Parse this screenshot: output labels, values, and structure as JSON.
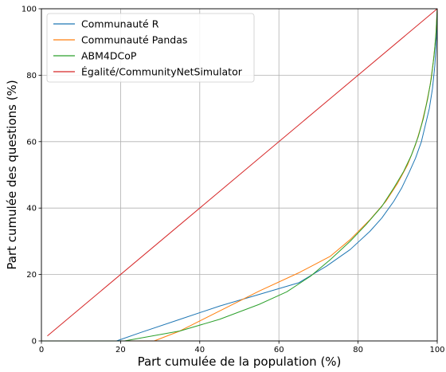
{
  "chart_data": {
    "type": "line",
    "xlabel": "Part cumulée de la population (%)",
    "ylabel": "Part cumulée des questions (%)",
    "xlim": [
      0,
      100
    ],
    "ylim": [
      0,
      100
    ],
    "xticks": [
      0,
      20,
      40,
      60,
      80,
      100
    ],
    "yticks": [
      0,
      20,
      40,
      60,
      80,
      100
    ],
    "grid": true,
    "legend_position": "top-left",
    "series": [
      {
        "name": "Communauté R",
        "color": "#1f77b4",
        "x": [
          0,
          10,
          19,
          25,
          35,
          45,
          55,
          65,
          72,
          78,
          83,
          86,
          89,
          91,
          93,
          94.5,
          96,
          97,
          98,
          98.8,
          99.4,
          99.8,
          100
        ],
        "y": [
          0,
          0,
          0,
          2.5,
          6.5,
          10.5,
          14,
          17.5,
          22.5,
          27.5,
          33,
          37,
          42,
          46,
          51,
          55,
          60,
          65,
          70,
          76,
          83,
          91,
          100
        ]
      },
      {
        "name": "Communauté Pandas",
        "color": "#ff7f0e",
        "x": [
          0,
          20,
          28.5,
          35,
          45,
          55,
          65,
          73,
          78,
          83,
          87,
          90,
          92.5,
          94.5,
          96,
          97.2,
          98.2,
          99,
          99.6,
          100
        ],
        "y": [
          0,
          0,
          0,
          3,
          9,
          15,
          20.5,
          25.5,
          30.5,
          36.5,
          42,
          47.5,
          53,
          59,
          65,
          71,
          77,
          84,
          91,
          100
        ]
      },
      {
        "name": "ABM4DCoP",
        "color": "#2ca02c",
        "x": [
          0,
          15,
          21,
          28,
          35,
          45,
          55,
          62,
          68,
          73,
          78,
          82,
          86,
          89,
          91.5,
          93.5,
          95.2,
          96.5,
          97.6,
          98.5,
          99.2,
          99.7,
          100
        ],
        "y": [
          0,
          0,
          0,
          1.5,
          3,
          6.5,
          11,
          14.8,
          19.5,
          24.5,
          30,
          35,
          40.5,
          46,
          51,
          56,
          61.5,
          67,
          73,
          79,
          86,
          93,
          100
        ]
      },
      {
        "name": "Égalité/CommunityNetSimulator",
        "color": "#d62728",
        "x": [
          1.5,
          100
        ],
        "y": [
          1.5,
          100
        ]
      }
    ]
  }
}
